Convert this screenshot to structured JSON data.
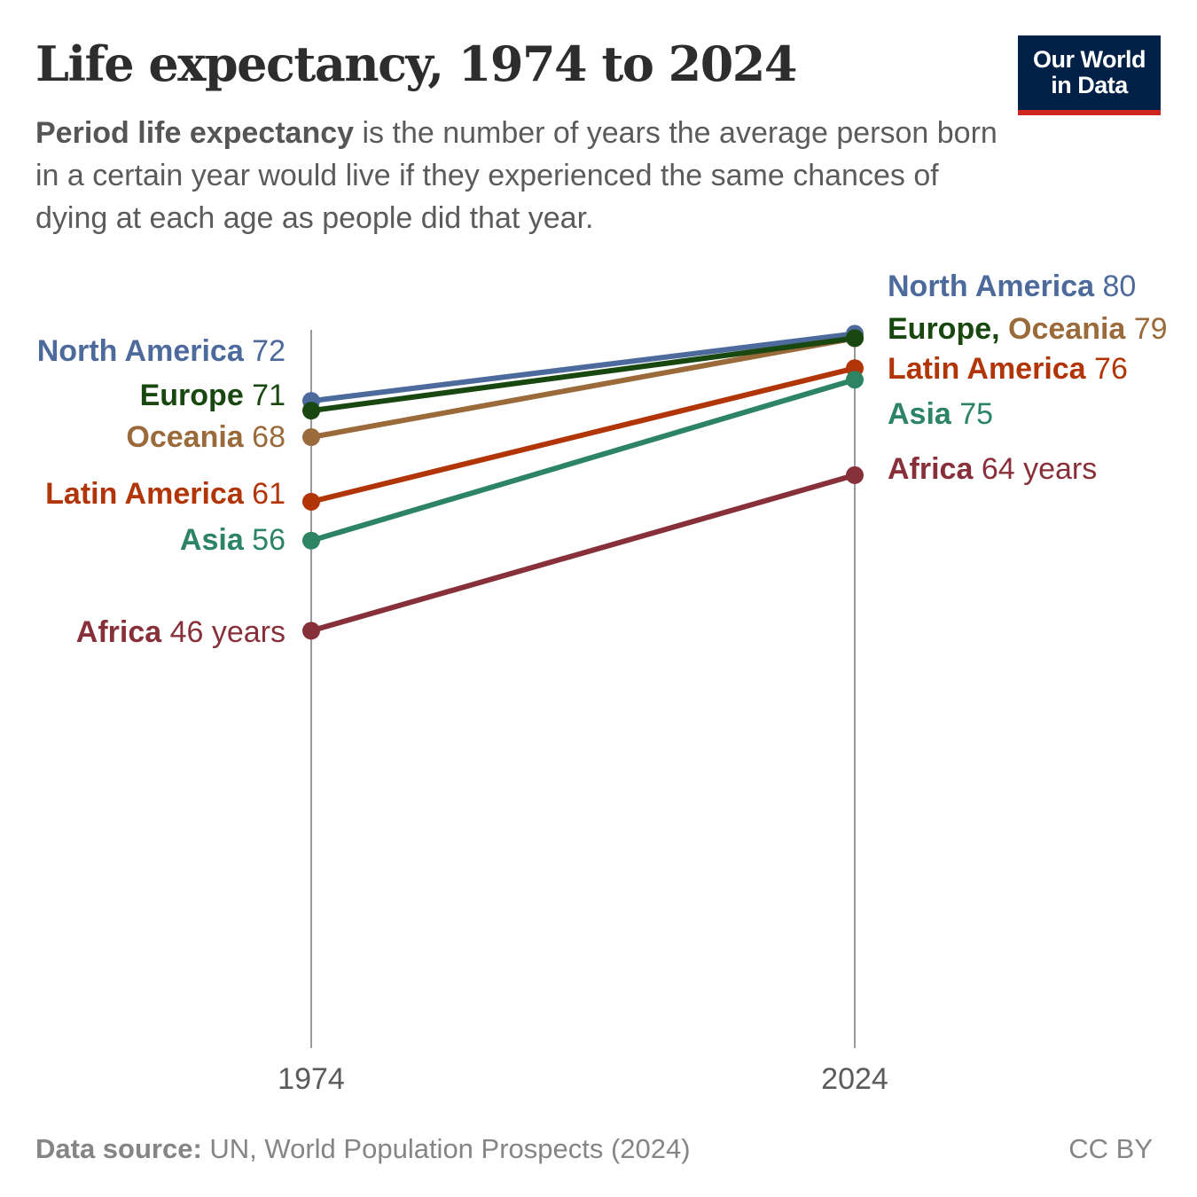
{
  "header": {
    "title": "Life expectancy, 1974 to 2024",
    "subtitle_bold": "Period life expectancy",
    "subtitle_rest": " is the number of years the average person born in a certain year would live if they experienced the same chances of dying at each age as people did that year.",
    "logo_line1": "Our World",
    "logo_line2": "in Data"
  },
  "chart_data": {
    "type": "line",
    "subtype": "slope",
    "title": "Life expectancy, 1974 to 2024",
    "x": [
      "1974",
      "2024"
    ],
    "unit": "years",
    "ylim": [
      0,
      81
    ],
    "grid": false,
    "series": [
      {
        "name": "North America",
        "values": [
          72.2,
          79.8
        ],
        "labels": [
          "72",
          "80"
        ],
        "color": "#4c6a9c"
      },
      {
        "name": "Oceania",
        "values": [
          68.1,
          79.3
        ],
        "labels": [
          "68",
          "79"
        ],
        "color": "#9a6a3a"
      },
      {
        "name": "Europe",
        "values": [
          71.1,
          79.3
        ],
        "labels": [
          "71",
          "79"
        ],
        "color": "#18470f"
      },
      {
        "name": "Latin America",
        "values": [
          60.8,
          75.9
        ],
        "labels": [
          "61",
          "76"
        ],
        "color": "#b13507"
      },
      {
        "name": "Asia",
        "values": [
          56.4,
          74.6
        ],
        "labels": [
          "56",
          "75"
        ],
        "color": "#2c8465"
      },
      {
        "name": "Africa",
        "values": [
          46.2,
          63.8
        ],
        "labels": [
          "46 years",
          "64 years"
        ],
        "color": "#883039"
      }
    ],
    "right_combined_label": {
      "names": [
        "Europe,",
        "Oceania"
      ],
      "value": "79"
    }
  },
  "footer": {
    "source_label": "Data source:",
    "source_text": " UN, World Population Prospects (2024)",
    "license": "CC BY"
  }
}
